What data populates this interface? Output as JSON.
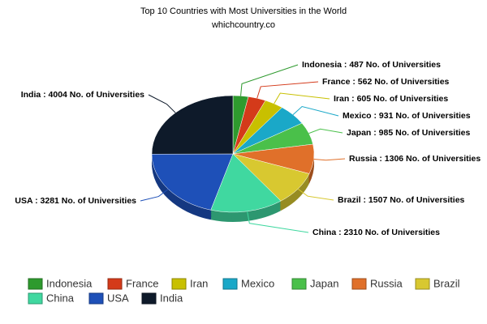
{
  "chart_data": {
    "type": "pie",
    "title": "Top 10 Countries with Most Universities in the World",
    "subtitle": "whichcountry.co",
    "categories": [
      "Indonesia",
      "France",
      "Iran",
      "Mexico",
      "Japan",
      "Russia",
      "Brazil",
      "China",
      "USA",
      "India"
    ],
    "values": [
      487,
      562,
      605,
      931,
      985,
      1306,
      1507,
      2310,
      3281,
      4004
    ],
    "value_labels": [
      "Indonesia : 487 No. of Universities",
      "France : 562 No. of Universities",
      "Iran : 605 No. of Universities",
      "Mexico : 931 No. of Universities",
      "Japan : 985 No. of Universities",
      "Russia : 1306 No. of Universities",
      "Brazil : 1507 No. of Universities",
      "China : 2310 No. of Universities",
      "USA : 3281 No. of Universities",
      "India : 4004 No. of Universities"
    ],
    "colors": [
      "#2e9a2e",
      "#d43a1a",
      "#c8c000",
      "#1aa8c8",
      "#4ac04a",
      "#e0702a",
      "#d8c830",
      "#40d8a0",
      "#1e50b8",
      "#0e1a2a"
    ],
    "legend": "bottom"
  }
}
